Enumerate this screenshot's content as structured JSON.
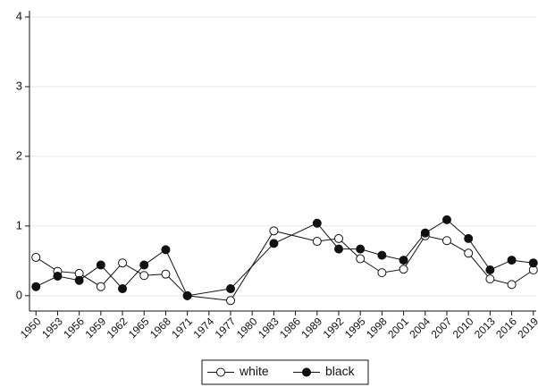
{
  "chart_data": {
    "type": "line",
    "x": [
      1950,
      1953,
      1956,
      1959,
      1962,
      1965,
      1968,
      1971,
      1977,
      1983,
      1989,
      1992,
      1995,
      1998,
      2001,
      2004,
      2007,
      2010,
      2013,
      2016,
      2019
    ],
    "series": [
      {
        "name": "white",
        "color": "#111111",
        "marker": "open",
        "values": [
          0.55,
          0.35,
          0.32,
          0.13,
          0.47,
          0.29,
          0.31,
          0,
          -0.07,
          0.93,
          0.78,
          0.82,
          0.53,
          0.33,
          0.38,
          0.86,
          0.79,
          0.61,
          0.24,
          0.16,
          0.37
        ]
      },
      {
        "name": "black",
        "color": "#111111",
        "marker": "filled",
        "values": [
          0.13,
          0.28,
          0.22,
          0.44,
          0.1,
          0.44,
          0.66,
          0,
          0.1,
          0.75,
          1.04,
          0.67,
          0.67,
          0.58,
          0.51,
          0.9,
          1.09,
          0.82,
          0.37,
          0.51,
          0.47
        ]
      }
    ],
    "xlim": [
      1949.1,
      2019.4
    ],
    "xticks": [
      1950,
      1953,
      1956,
      1959,
      1962,
      1965,
      1968,
      1971,
      1974,
      1977,
      1980,
      1983,
      1986,
      1989,
      1992,
      1995,
      1998,
      2001,
      2004,
      2007,
      2010,
      2013,
      2016,
      2019
    ],
    "ylim": [
      -0.22,
      4.09
    ],
    "yticks": [
      0,
      1,
      2,
      3,
      4
    ],
    "grid": true,
    "legend": "bottom"
  }
}
